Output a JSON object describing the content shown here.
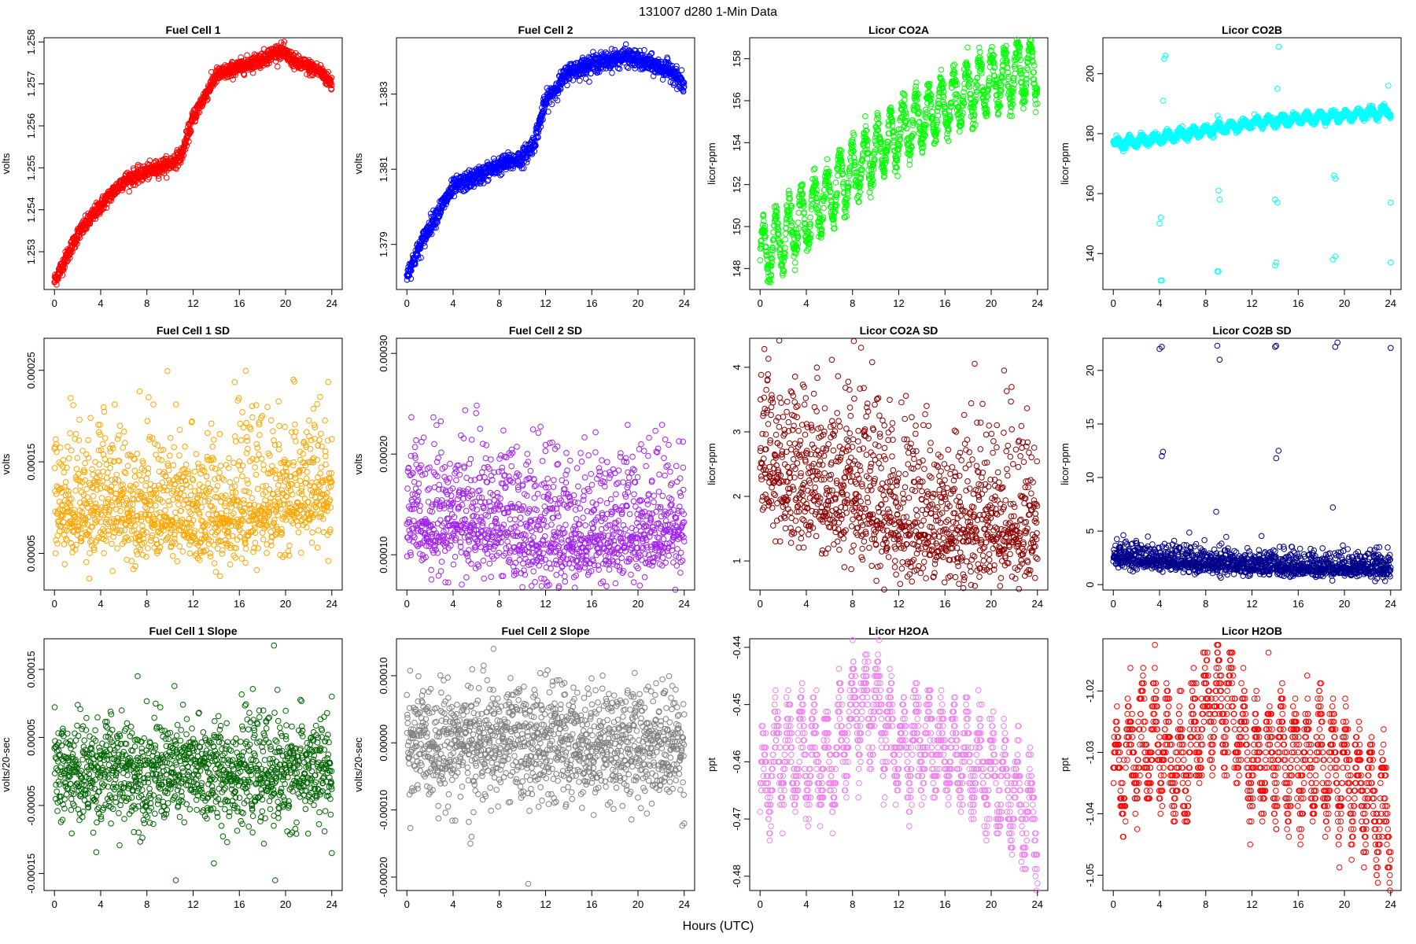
{
  "figure": {
    "title": "131007   d280   1-Min Data",
    "xlabel": "Hours (UTC)"
  },
  "chart_data": [
    {
      "type": "scatter",
      "title": "Fuel Cell 1",
      "ylabel": "volts",
      "color": "#ff0000",
      "xlim": [
        0,
        24
      ],
      "ylim": [
        1.2521,
        1.2581
      ],
      "xticks": [
        0,
        4,
        8,
        12,
        16,
        20,
        24
      ],
      "yticks": [
        1.253,
        1.254,
        1.255,
        1.256,
        1.257,
        1.258
      ],
      "ytick_labels": [
        "1.253",
        "1.254",
        "1.255",
        "1.256",
        "1.257",
        "1.258"
      ],
      "trend": [
        [
          0,
          1.2523
        ],
        [
          2,
          1.2534
        ],
        [
          4,
          1.2541
        ],
        [
          6,
          1.2547
        ],
        [
          8,
          1.2549
        ],
        [
          10,
          1.2551
        ],
        [
          11,
          1.2553
        ],
        [
          12,
          1.2562
        ],
        [
          14,
          1.2572
        ],
        [
          16,
          1.2574
        ],
        [
          18,
          1.2576
        ],
        [
          19.5,
          1.2578
        ],
        [
          21,
          1.2575
        ],
        [
          23,
          1.2573
        ],
        [
          24,
          1.257
        ]
      ],
      "noise": 9e-05
    },
    {
      "type": "scatter",
      "title": "Fuel Cell 2",
      "ylabel": "volts",
      "color": "#0000ff",
      "xlim": [
        0,
        24
      ],
      "ylim": [
        1.3778,
        1.3845
      ],
      "xticks": [
        0,
        4,
        8,
        12,
        16,
        20,
        24
      ],
      "yticks": [
        1.379,
        1.381,
        1.383
      ],
      "ytick_labels": [
        "1.379",
        "1.381",
        "1.383"
      ],
      "trend": [
        [
          0,
          1.3782
        ],
        [
          2,
          1.3795
        ],
        [
          4,
          1.3805
        ],
        [
          6,
          1.3808
        ],
        [
          8,
          1.3811
        ],
        [
          10,
          1.3813
        ],
        [
          11,
          1.3817
        ],
        [
          12,
          1.3828
        ],
        [
          14,
          1.3836
        ],
        [
          16,
          1.3838
        ],
        [
          19,
          1.384
        ],
        [
          21,
          1.3838
        ],
        [
          23,
          1.3836
        ],
        [
          24,
          1.3832
        ]
      ],
      "noise": 0.00012
    },
    {
      "type": "scatter",
      "title": "Licor CO2A",
      "ylabel": "licor-ppm",
      "color": "#00ff00",
      "xlim": [
        0,
        24
      ],
      "ylim": [
        147,
        159
      ],
      "xticks": [
        0,
        4,
        8,
        12,
        16,
        20,
        24
      ],
      "yticks": [
        148,
        150,
        152,
        154,
        156,
        158
      ],
      "ytick_labels": [
        "148",
        "150",
        "152",
        "154",
        "156",
        "158"
      ],
      "trend": [
        [
          0,
          148.5
        ],
        [
          4,
          150.5
        ],
        [
          8,
          152.5
        ],
        [
          12,
          154.5
        ],
        [
          16,
          155.8
        ],
        [
          20,
          157
        ],
        [
          24,
          157.5
        ]
      ],
      "wave_amp": 1.3,
      "wave_period": 1.1,
      "noise": 0.35
    },
    {
      "type": "scatter",
      "title": "Licor CO2B",
      "ylabel": "licor-ppm",
      "color": "#00ffff",
      "xlim": [
        0,
        24
      ],
      "ylim": [
        128,
        212
      ],
      "xticks": [
        0,
        4,
        8,
        12,
        16,
        20,
        24
      ],
      "yticks": [
        140,
        160,
        180,
        200
      ],
      "ytick_labels": [
        "140",
        "160",
        "180",
        "200"
      ],
      "trend": [
        [
          0,
          176.5
        ],
        [
          4,
          178.5
        ],
        [
          8,
          181
        ],
        [
          12,
          183.5
        ],
        [
          16,
          185
        ],
        [
          20,
          186
        ],
        [
          24,
          187.5
        ]
      ],
      "wave_amp": 1.2,
      "wave_period": 1.1,
      "noise": 0.6,
      "outliers": [
        [
          4.1,
          131
        ],
        [
          4.2,
          131
        ],
        [
          4.0,
          150
        ],
        [
          4.1,
          152
        ],
        [
          4.4,
          205
        ],
        [
          4.5,
          206
        ],
        [
          4.3,
          191
        ],
        [
          9.0,
          134
        ],
        [
          9.1,
          134
        ],
        [
          9.2,
          158
        ],
        [
          9.1,
          161
        ],
        [
          9.0,
          186
        ],
        [
          14.0,
          136
        ],
        [
          14.1,
          137
        ],
        [
          14.2,
          157
        ],
        [
          14.0,
          158
        ],
        [
          14.2,
          195
        ],
        [
          14.3,
          209
        ],
        [
          19.0,
          138
        ],
        [
          19.2,
          139
        ],
        [
          19.1,
          166
        ],
        [
          19.2,
          165
        ],
        [
          24,
          137
        ],
        [
          24,
          157
        ],
        [
          23.8,
          196
        ]
      ]
    },
    {
      "type": "scatter",
      "title": "Fuel Cell 1 SD",
      "ylabel": "volts",
      "color": "#ffa500",
      "xlim": [
        0,
        24
      ],
      "ylim": [
        1e-05,
        0.000285
      ],
      "xticks": [
        0,
        4,
        8,
        12,
        16,
        20,
        24
      ],
      "yticks": [
        5e-05,
        0.00015,
        0.00025
      ],
      "ytick_labels": [
        "0.00005",
        "0.00015",
        "0.00025"
      ],
      "trend": [
        [
          0,
          9.5e-05
        ],
        [
          6,
          0.0001
        ],
        [
          12,
          8.5e-05
        ],
        [
          18,
          0.0001
        ],
        [
          24,
          0.000115
        ]
      ],
      "noise": 3e-05,
      "skew": true
    },
    {
      "type": "scatter",
      "title": "Fuel Cell 2 SD",
      "ylabel": "volts",
      "color": "#a020f0",
      "xlim": [
        0,
        24
      ],
      "ylim": [
        6.5e-05,
        0.000315
      ],
      "xticks": [
        0,
        4,
        8,
        12,
        16,
        20,
        24
      ],
      "yticks": [
        0.0001,
        0.0002,
        0.0003
      ],
      "ytick_labels": [
        "0.00010",
        "0.00020",
        "0.00030"
      ],
      "trend": [
        [
          0,
          0.000135
        ],
        [
          6,
          0.00013
        ],
        [
          12,
          0.000115
        ],
        [
          18,
          0.00012
        ],
        [
          24,
          0.00013
        ]
      ],
      "noise": 2.7e-05,
      "skew": true
    },
    {
      "type": "scatter",
      "title": "Licor CO2A SD",
      "ylabel": "licor-ppm",
      "color": "#8b0000",
      "xlim": [
        0,
        24
      ],
      "ylim": [
        0.55,
        4.45
      ],
      "xticks": [
        0,
        4,
        8,
        12,
        16,
        20,
        24
      ],
      "yticks": [
        1,
        2,
        3,
        4
      ],
      "ytick_labels": [
        "1",
        "2",
        "3",
        "4"
      ],
      "trend": [
        [
          0,
          2.5
        ],
        [
          4,
          2.1
        ],
        [
          8,
          1.9
        ],
        [
          12,
          1.6
        ],
        [
          16,
          1.5
        ],
        [
          20,
          1.6
        ],
        [
          24,
          1.4
        ]
      ],
      "noise": 0.55,
      "skew": true
    },
    {
      "type": "scatter",
      "title": "Licor CO2B SD",
      "ylabel": "licor-ppm",
      "color": "#00008b",
      "xlim": [
        0,
        24
      ],
      "ylim": [
        -0.5,
        23
      ],
      "xticks": [
        0,
        4,
        8,
        12,
        16,
        20,
        24
      ],
      "yticks": [
        0,
        5,
        10,
        15,
        20
      ],
      "ytick_labels": [
        "0",
        "5",
        "10",
        "15",
        "20"
      ],
      "trend": [
        [
          0,
          2.6
        ],
        [
          4,
          2.2
        ],
        [
          8,
          1.9
        ],
        [
          12,
          1.7
        ],
        [
          16,
          1.6
        ],
        [
          20,
          1.6
        ],
        [
          24,
          1.5
        ]
      ],
      "noise": 0.5,
      "skew": true,
      "outliers": [
        [
          4.0,
          22
        ],
        [
          4.2,
          22.2
        ],
        [
          4.2,
          12
        ],
        [
          4.3,
          12.4
        ],
        [
          9.0,
          22.3
        ],
        [
          9.2,
          21
        ],
        [
          8.9,
          6.8
        ],
        [
          14.0,
          22.2
        ],
        [
          14.1,
          22.3
        ],
        [
          14.1,
          11.8
        ],
        [
          14.3,
          12.5
        ],
        [
          19.2,
          22.2
        ],
        [
          19.4,
          22.6
        ],
        [
          19.0,
          7.2
        ],
        [
          24,
          22.1
        ]
      ]
    },
    {
      "type": "scatter",
      "title": "Fuel Cell 1 Slope",
      "ylabel": "volts/20-sec",
      "color": "#006400",
      "xlim": [
        0,
        24
      ],
      "ylim": [
        -0.000175,
        0.000195
      ],
      "xticks": [
        0,
        4,
        8,
        12,
        16,
        20,
        24
      ],
      "yticks": [
        -0.00015,
        -5e-05,
        5e-05,
        0.00015
      ],
      "ytick_labels": [
        "-0.00015",
        "-0.00005",
        "0.00005",
        "0.00015"
      ],
      "trend": [
        [
          0,
          0.0
        ],
        [
          24,
          0.0
        ]
      ],
      "noise": 3.8e-05,
      "outliers": [
        [
          19.0,
          0.000185
        ],
        [
          19.1,
          -0.00016
        ],
        [
          13.8,
          -0.000135
        ],
        [
          10.5,
          -0.00016
        ],
        [
          24,
          0.00011
        ],
        [
          24,
          -0.00012
        ],
        [
          19.3,
          0.00012
        ],
        [
          7.2,
          0.00014
        ]
      ]
    },
    {
      "type": "scatter",
      "title": "Fuel Cell 2 Slope",
      "ylabel": "volts/20-sec",
      "color": "#808080",
      "xlim": [
        0,
        24
      ],
      "ylim": [
        -0.00022,
        0.000155
      ],
      "xticks": [
        0,
        4,
        8,
        12,
        16,
        20,
        24
      ],
      "yticks": [
        -0.0002,
        -0.0001,
        0.0,
        0.0001
      ],
      "ytick_labels": [
        "-0.00020",
        "-0.00010",
        "0.00000",
        "0.00010"
      ],
      "trend": [
        [
          0,
          0.0
        ],
        [
          24,
          0.0
        ]
      ],
      "noise": 4.2e-05,
      "outliers": [
        [
          10.5,
          -0.00021
        ],
        [
          5.6,
          -0.00014
        ],
        [
          5.5,
          -0.00015
        ],
        [
          7.5,
          0.00014
        ],
        [
          24,
          -0.00012
        ]
      ]
    },
    {
      "type": "scatter",
      "title": "Licor H2OA",
      "ylabel": "ppt",
      "color": "#ee82ee",
      "xlim": [
        0,
        24
      ],
      "ylim": [
        -0.4825,
        -0.4385
      ],
      "xticks": [
        0,
        4,
        8,
        12,
        16,
        20,
        24
      ],
      "yticks": [
        -0.48,
        -0.47,
        -0.46,
        -0.45,
        -0.44
      ],
      "ytick_labels": [
        "-0.48",
        "-0.47",
        "-0.46",
        "-0.45",
        "-0.44"
      ],
      "trend": [
        [
          0,
          -0.465
        ],
        [
          2,
          -0.458
        ],
        [
          4,
          -0.459
        ],
        [
          6,
          -0.461
        ],
        [
          8,
          -0.452
        ],
        [
          10,
          -0.451
        ],
        [
          12,
          -0.458
        ],
        [
          14,
          -0.456
        ],
        [
          16,
          -0.458
        ],
        [
          18,
          -0.459
        ],
        [
          20,
          -0.462
        ],
        [
          22,
          -0.466
        ],
        [
          24,
          -0.471
        ]
      ],
      "wave_amp": 0.007,
      "wave_period": 1.1,
      "noise": 0.003,
      "quantum": 0.00125
    },
    {
      "type": "scatter",
      "title": "Licor H2OB",
      "ylabel": "ppt",
      "color": "#ff0000",
      "xlim": [
        0,
        24
      ],
      "ylim": [
        -1.0525,
        -1.0115
      ],
      "xticks": [
        0,
        4,
        8,
        12,
        16,
        20,
        24
      ],
      "yticks": [
        -1.05,
        -1.04,
        -1.03,
        -1.02
      ],
      "ytick_labels": [
        "-1.05",
        "-1.04",
        "-1.03",
        "-1.02"
      ],
      "trend": [
        [
          0,
          -1.035
        ],
        [
          2,
          -1.029
        ],
        [
          4,
          -1.028
        ],
        [
          6,
          -1.034
        ],
        [
          8,
          -1.023
        ],
        [
          10,
          -1.022
        ],
        [
          12,
          -1.032
        ],
        [
          14,
          -1.031
        ],
        [
          16,
          -1.032
        ],
        [
          18,
          -1.031
        ],
        [
          20,
          -1.033
        ],
        [
          22,
          -1.037
        ],
        [
          24,
          -1.042
        ]
      ],
      "wave_amp": 0.007,
      "wave_period": 1.1,
      "noise": 0.003,
      "quantum": 0.00125
    }
  ]
}
